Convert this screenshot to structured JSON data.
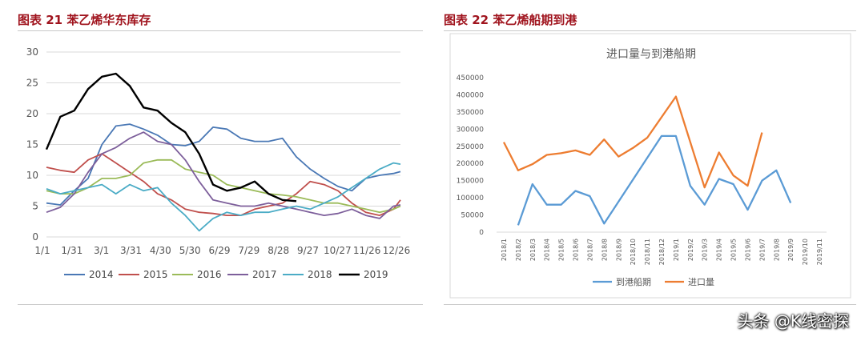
{
  "left": {
    "title": "图表 21 苯乙烯华东库存",
    "chart_data": {
      "type": "line",
      "title": "",
      "xlabel": "",
      "ylabel": "",
      "ylim": [
        0,
        30
      ],
      "yticks": [
        0,
        5,
        10,
        15,
        20,
        25,
        30
      ],
      "xticks": [
        "1/1",
        "1/31",
        "3/1",
        "3/31",
        "4/30",
        "5/30",
        "6/29",
        "7/29",
        "8/28",
        "9/27",
        "10/27",
        "11/26",
        "12/26"
      ],
      "xrange_weeks": [
        0,
        51
      ],
      "grid": "horizontal",
      "legend": "bottom",
      "series": [
        {
          "name": "2014",
          "color": "#4a78b5",
          "x": [
            0,
            2,
            4,
            6,
            8,
            10,
            12,
            14,
            16,
            18,
            20,
            22,
            24,
            26,
            28,
            30,
            32,
            34,
            36,
            38,
            40,
            42,
            44,
            46,
            48,
            50,
            51
          ],
          "values": [
            5.5,
            5.2,
            7.5,
            9.5,
            15,
            18,
            18.3,
            17.5,
            16.5,
            15,
            14.8,
            15.5,
            17.8,
            17.5,
            16,
            15.5,
            15.5,
            16,
            13,
            11,
            9.5,
            8.2,
            7.5,
            9.5,
            10,
            10.3,
            10.6
          ]
        },
        {
          "name": "2015",
          "color": "#c0504d",
          "x": [
            0,
            2,
            4,
            6,
            8,
            10,
            12,
            14,
            16,
            18,
            20,
            22,
            24,
            26,
            28,
            30,
            32,
            34,
            36,
            38,
            40,
            42,
            44,
            46,
            48,
            50,
            51
          ],
          "values": [
            11.3,
            10.8,
            10.5,
            12.5,
            13.5,
            12,
            10.5,
            9,
            7,
            6,
            4.5,
            4,
            3.8,
            3.5,
            3.5,
            4.5,
            5,
            5.5,
            7,
            9,
            8.5,
            7.5,
            5.5,
            4,
            3.5,
            4.5,
            6
          ]
        },
        {
          "name": "2016",
          "color": "#9bbb59",
          "x": [
            0,
            2,
            4,
            6,
            8,
            10,
            12,
            14,
            16,
            18,
            20,
            22,
            24,
            26,
            28,
            30,
            32,
            34,
            36,
            38,
            40,
            42,
            44,
            46,
            48,
            50,
            51
          ],
          "values": [
            7.5,
            7,
            7,
            8,
            9.5,
            9.5,
            10,
            12,
            12.5,
            12.5,
            11,
            10.5,
            10,
            8.5,
            8,
            7.5,
            7,
            6.8,
            6.5,
            6,
            5.5,
            5.5,
            5,
            4.5,
            4,
            4.5,
            5
          ]
        },
        {
          "name": "2017",
          "color": "#7d5f9b",
          "x": [
            0,
            2,
            4,
            6,
            8,
            10,
            12,
            14,
            16,
            18,
            20,
            22,
            24,
            26,
            28,
            30,
            32,
            34,
            36,
            38,
            40,
            42,
            44,
            46,
            48,
            50,
            51
          ],
          "values": [
            4,
            4.8,
            7,
            10.5,
            13.5,
            14.5,
            16,
            17,
            15.5,
            15,
            12.5,
            9,
            6,
            5.5,
            5,
            5,
            5.5,
            5,
            4.5,
            4,
            3.5,
            3.8,
            4.5,
            3.5,
            3,
            5,
            5.2
          ]
        },
        {
          "name": "2018",
          "color": "#4bacc6",
          "x": [
            0,
            2,
            4,
            6,
            8,
            10,
            12,
            14,
            16,
            18,
            20,
            22,
            24,
            26,
            28,
            30,
            32,
            34,
            36,
            38,
            40,
            42,
            44,
            46,
            48,
            50,
            51
          ],
          "values": [
            7.8,
            7,
            7.5,
            8,
            8.5,
            7,
            8.5,
            7.5,
            8,
            5.5,
            3.5,
            1,
            3,
            4,
            3.5,
            4,
            4,
            4.5,
            5,
            4.5,
            5.5,
            6.5,
            8,
            9.5,
            11,
            12,
            11.8
          ]
        },
        {
          "name": "2019",
          "color": "#000000",
          "x": [
            0,
            2,
            4,
            6,
            8,
            10,
            12,
            14,
            16,
            18,
            20,
            22,
            24,
            26,
            28,
            30,
            32,
            34,
            36
          ],
          "values": [
            14.2,
            19.5,
            20.5,
            24,
            26,
            26.5,
            24.5,
            21,
            20.5,
            18.5,
            17,
            13.5,
            8.5,
            7.5,
            8,
            9,
            7,
            6,
            5.8
          ]
        }
      ]
    }
  },
  "right": {
    "title": "图表 22 苯乙烯船期到港",
    "chart_data": {
      "type": "line",
      "title": "进口量与到港船期",
      "xlabel": "",
      "ylabel": "",
      "ylim": [
        0,
        450000
      ],
      "yticks": [
        0,
        50000,
        100000,
        150000,
        200000,
        250000,
        300000,
        350000,
        400000,
        450000
      ],
      "categories": [
        "2018/1",
        "2018/2",
        "2018/3",
        "2018/4",
        "2018/5",
        "2018/6",
        "2018/7",
        "2018/8",
        "2018/9",
        "2018/10",
        "2018/11",
        "2018/12",
        "2019/1",
        "2019/2",
        "2019/3",
        "2019/4",
        "2019/5",
        "2019/6",
        "2019/7",
        "2019/8",
        "2019/9",
        "2019/10",
        "2019/11"
      ],
      "grid": "none",
      "legend": "bottom",
      "series": [
        {
          "name": "到港船期",
          "color": "#5b9bd5",
          "values": [
            null,
            20000,
            140000,
            80000,
            80000,
            120000,
            105000,
            25000,
            null,
            null,
            null,
            280000,
            280000,
            135000,
            80000,
            155000,
            140000,
            65000,
            150000,
            180000,
            85000,
            null,
            null
          ]
        },
        {
          "name": "进口量",
          "color": "#ed7d31",
          "values": [
            262000,
            180000,
            198000,
            225000,
            230000,
            238000,
            225000,
            270000,
            220000,
            245000,
            275000,
            null,
            395000,
            null,
            130000,
            232000,
            165000,
            135000,
            290000,
            null,
            null,
            null,
            null
          ]
        }
      ]
    }
  },
  "watermark": "头条 @K线密探"
}
